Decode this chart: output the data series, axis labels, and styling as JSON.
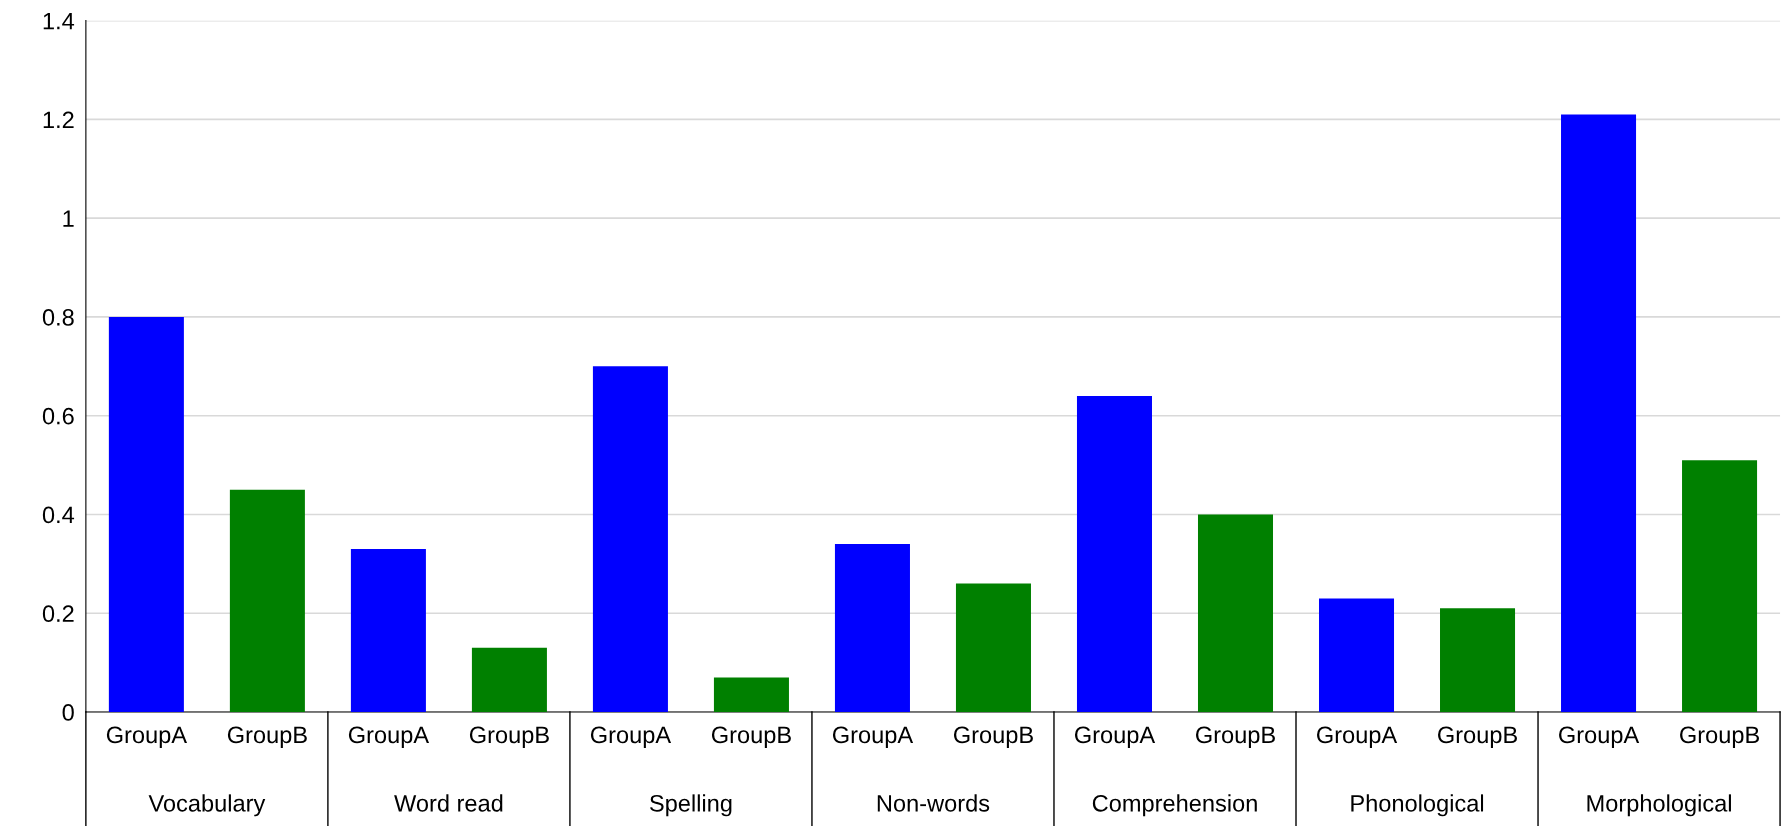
{
  "chart_data": {
    "type": "bar",
    "categories": [
      "GroupA",
      "GroupB",
      "GroupA",
      "GroupB",
      "GroupA",
      "GroupB",
      "GroupA",
      "GroupB",
      "GroupA",
      "GroupB",
      "GroupA",
      "GroupB",
      "GroupA",
      "GroupB"
    ],
    "values": [
      0.8,
      0.45,
      0.33,
      0.13,
      0.7,
      0.07,
      0.34,
      0.26,
      0.64,
      0.4,
      0.23,
      0.21,
      1.21,
      0.51
    ],
    "colors": [
      "#0000ff",
      "#008000",
      "#0000ff",
      "#008000",
      "#0000ff",
      "#008000",
      "#0000ff",
      "#008000",
      "#0000ff",
      "#008000",
      "#0000ff",
      "#008000",
      "#0000ff",
      "#008000"
    ],
    "annotations": [
      "Vocabulary",
      "Word read",
      "Spelling",
      "Non-words",
      "Comprehension",
      "Phonological",
      "Morphological"
    ],
    "ylim": [
      0,
      1.4
    ],
    "yticks": [
      0,
      0.2,
      0.4,
      0.6,
      0.8,
      1,
      1.2,
      1.4
    ],
    "grid": "y",
    "legend": false
  }
}
